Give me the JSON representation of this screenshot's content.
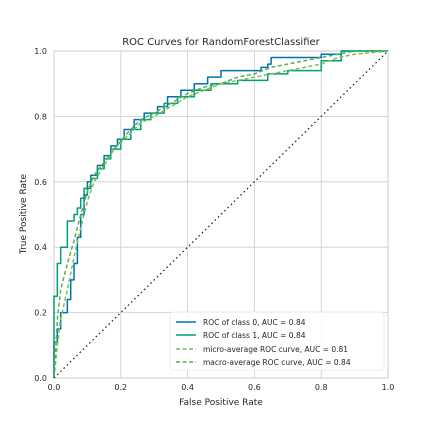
{
  "chart_data": {
    "type": "line",
    "title": "ROC Curves for RandomForestClassifier",
    "xlabel": "False Positive Rate",
    "ylabel": "True Positive Rate",
    "xlim": [
      0.0,
      1.0
    ],
    "ylim": [
      0.0,
      1.0
    ],
    "x_ticks": [
      "0.0",
      "0.2",
      "0.4",
      "0.6",
      "0.8",
      "1.0"
    ],
    "y_ticks": [
      "0.0",
      "0.2",
      "0.4",
      "0.6",
      "0.8",
      "1.0"
    ],
    "grid": true,
    "legend_position": "lower-right",
    "series": [
      {
        "name": "ROC of class 0, AUC = 0.84",
        "color": "#0072B2",
        "style": "solid",
        "points": [
          [
            0,
            0
          ],
          [
            0,
            0.11
          ],
          [
            0.01,
            0.11
          ],
          [
            0.01,
            0.15
          ],
          [
            0.02,
            0.15
          ],
          [
            0.02,
            0.2
          ],
          [
            0.04,
            0.2
          ],
          [
            0.04,
            0.24
          ],
          [
            0.05,
            0.24
          ],
          [
            0.05,
            0.3
          ],
          [
            0.06,
            0.3
          ],
          [
            0.06,
            0.35
          ],
          [
            0.07,
            0.35
          ],
          [
            0.07,
            0.43
          ],
          [
            0.08,
            0.43
          ],
          [
            0.08,
            0.5
          ],
          [
            0.09,
            0.5
          ],
          [
            0.09,
            0.56
          ],
          [
            0.1,
            0.56
          ],
          [
            0.1,
            0.6
          ],
          [
            0.11,
            0.6
          ],
          [
            0.11,
            0.62
          ],
          [
            0.13,
            0.62
          ],
          [
            0.13,
            0.65
          ],
          [
            0.15,
            0.65
          ],
          [
            0.15,
            0.68
          ],
          [
            0.17,
            0.68
          ],
          [
            0.17,
            0.71
          ],
          [
            0.19,
            0.71
          ],
          [
            0.19,
            0.73
          ],
          [
            0.21,
            0.73
          ],
          [
            0.21,
            0.76
          ],
          [
            0.24,
            0.76
          ],
          [
            0.24,
            0.79
          ],
          [
            0.27,
            0.79
          ],
          [
            0.27,
            0.81
          ],
          [
            0.31,
            0.81
          ],
          [
            0.31,
            0.83
          ],
          [
            0.34,
            0.83
          ],
          [
            0.34,
            0.86
          ],
          [
            0.38,
            0.86
          ],
          [
            0.38,
            0.88
          ],
          [
            0.42,
            0.88
          ],
          [
            0.42,
            0.9
          ],
          [
            0.46,
            0.9
          ],
          [
            0.46,
            0.92
          ],
          [
            0.5,
            0.92
          ],
          [
            0.5,
            0.94
          ],
          [
            0.62,
            0.94
          ],
          [
            0.62,
            0.95
          ],
          [
            0.64,
            0.95
          ],
          [
            0.64,
            0.96
          ],
          [
            0.65,
            0.96
          ],
          [
            0.65,
            0.98
          ],
          [
            0.8,
            0.98
          ],
          [
            0.8,
            0.99
          ],
          [
            0.86,
            0.99
          ],
          [
            0.86,
            1.0
          ],
          [
            1.0,
            1.0
          ]
        ]
      },
      {
        "name": "ROC of class 1, AUC = 0.84",
        "color": "#009E73",
        "style": "solid",
        "points": [
          [
            0,
            0
          ],
          [
            0,
            0.25
          ],
          [
            0.01,
            0.25
          ],
          [
            0.01,
            0.35
          ],
          [
            0.02,
            0.35
          ],
          [
            0.02,
            0.4
          ],
          [
            0.04,
            0.4
          ],
          [
            0.04,
            0.48
          ],
          [
            0.06,
            0.48
          ],
          [
            0.06,
            0.5
          ],
          [
            0.07,
            0.5
          ],
          [
            0.07,
            0.52
          ],
          [
            0.08,
            0.52
          ],
          [
            0.08,
            0.55
          ],
          [
            0.09,
            0.55
          ],
          [
            0.09,
            0.58
          ],
          [
            0.11,
            0.58
          ],
          [
            0.11,
            0.61
          ],
          [
            0.13,
            0.61
          ],
          [
            0.13,
            0.64
          ],
          [
            0.15,
            0.64
          ],
          [
            0.15,
            0.67
          ],
          [
            0.17,
            0.67
          ],
          [
            0.17,
            0.7
          ],
          [
            0.2,
            0.7
          ],
          [
            0.2,
            0.73
          ],
          [
            0.23,
            0.73
          ],
          [
            0.23,
            0.76
          ],
          [
            0.26,
            0.76
          ],
          [
            0.26,
            0.79
          ],
          [
            0.29,
            0.79
          ],
          [
            0.29,
            0.81
          ],
          [
            0.33,
            0.81
          ],
          [
            0.33,
            0.84
          ],
          [
            0.37,
            0.84
          ],
          [
            0.37,
            0.86
          ],
          [
            0.42,
            0.86
          ],
          [
            0.42,
            0.88
          ],
          [
            0.47,
            0.88
          ],
          [
            0.47,
            0.9
          ],
          [
            0.55,
            0.9
          ],
          [
            0.55,
            0.91
          ],
          [
            0.64,
            0.91
          ],
          [
            0.64,
            0.93
          ],
          [
            0.7,
            0.93
          ],
          [
            0.7,
            0.94
          ],
          [
            0.8,
            0.94
          ],
          [
            0.8,
            0.97
          ],
          [
            0.86,
            0.97
          ],
          [
            0.86,
            1.0
          ],
          [
            1.0,
            1.0
          ]
        ]
      },
      {
        "name": "micro-average ROC curve, AUC = 0.81",
        "color": "#7ABF5A",
        "style": "dashed",
        "points": [
          [
            0,
            0
          ],
          [
            0.01,
            0.1
          ],
          [
            0.02,
            0.18
          ],
          [
            0.04,
            0.27
          ],
          [
            0.06,
            0.37
          ],
          [
            0.08,
            0.46
          ],
          [
            0.1,
            0.54
          ],
          [
            0.12,
            0.6
          ],
          [
            0.15,
            0.65
          ],
          [
            0.18,
            0.7
          ],
          [
            0.22,
            0.74
          ],
          [
            0.26,
            0.78
          ],
          [
            0.3,
            0.8
          ],
          [
            0.35,
            0.83
          ],
          [
            0.4,
            0.86
          ],
          [
            0.45,
            0.88
          ],
          [
            0.5,
            0.9
          ],
          [
            0.55,
            0.91
          ],
          [
            0.6,
            0.92
          ],
          [
            0.65,
            0.93
          ],
          [
            0.7,
            0.94
          ],
          [
            0.75,
            0.95
          ],
          [
            0.8,
            0.96
          ],
          [
            0.85,
            0.98
          ],
          [
            0.9,
            0.99
          ],
          [
            1.0,
            1.0
          ]
        ]
      },
      {
        "name": "macro-average ROC curve, AUC = 0.84",
        "color": "#5FAE55",
        "style": "dashed",
        "points": [
          [
            0,
            0
          ],
          [
            0.01,
            0.18
          ],
          [
            0.02,
            0.27
          ],
          [
            0.04,
            0.35
          ],
          [
            0.06,
            0.42
          ],
          [
            0.08,
            0.5
          ],
          [
            0.1,
            0.57
          ],
          [
            0.12,
            0.62
          ],
          [
            0.15,
            0.66
          ],
          [
            0.18,
            0.7
          ],
          [
            0.22,
            0.75
          ],
          [
            0.26,
            0.79
          ],
          [
            0.3,
            0.81
          ],
          [
            0.35,
            0.84
          ],
          [
            0.4,
            0.87
          ],
          [
            0.45,
            0.89
          ],
          [
            0.5,
            0.9
          ],
          [
            0.55,
            0.92
          ],
          [
            0.6,
            0.93
          ],
          [
            0.65,
            0.95
          ],
          [
            0.7,
            0.96
          ],
          [
            0.75,
            0.97
          ],
          [
            0.8,
            0.98
          ],
          [
            0.85,
            0.99
          ],
          [
            0.9,
            1.0
          ],
          [
            1.0,
            1.0
          ]
        ]
      }
    ],
    "reference_line": {
      "points": [
        [
          0,
          0
        ],
        [
          1,
          1
        ]
      ],
      "color": "#262626",
      "style": "dotted"
    }
  }
}
